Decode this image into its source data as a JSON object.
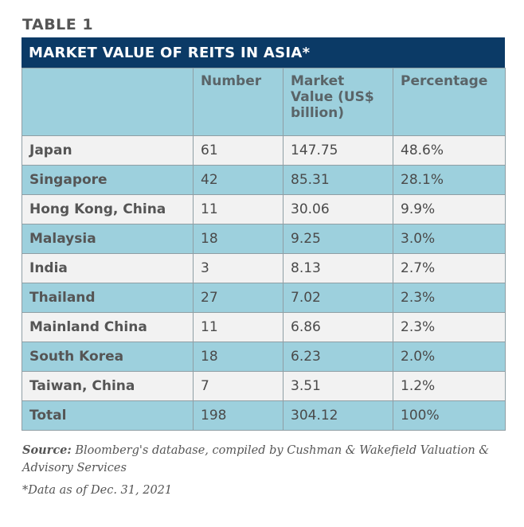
{
  "label": "TABLE 1",
  "title": "MARKET VALUE OF REITS IN ASIA*",
  "headers": [
    "",
    "Number",
    "Market Value (US$ billion)",
    "Percentage"
  ],
  "rows": [
    [
      "Japan",
      "61",
      "147.75",
      "48.6%"
    ],
    [
      "Singapore",
      "42",
      "85.31",
      "28.1%"
    ],
    [
      "Hong Kong, China",
      "11",
      "30.06",
      "9.9%"
    ],
    [
      "Malaysia",
      "18",
      "9.25",
      "3.0%"
    ],
    [
      "India",
      "3",
      "8.13",
      "2.7%"
    ],
    [
      "Thailand",
      "27",
      "7.02",
      "2.3%"
    ],
    [
      "Mainland China",
      "11",
      "6.86",
      "2.3%"
    ],
    [
      "South Korea",
      "18",
      "6.23",
      "2.0%"
    ],
    [
      "Taiwan, China",
      "7",
      "3.51",
      "1.2%"
    ],
    [
      "Total",
      "198",
      "304.12",
      "100%"
    ]
  ],
  "source_label": "Source:",
  "source_text": " Bloomberg's database, compiled by Cushman & Wakefield Valuation & Advisory Services",
  "footnote": "*Data as of Dec. 31, 2021",
  "colors": {
    "title_bg": "#0b3a66",
    "header_bg": "#9dd0dd",
    "alt_row": "#f2f2f2"
  }
}
